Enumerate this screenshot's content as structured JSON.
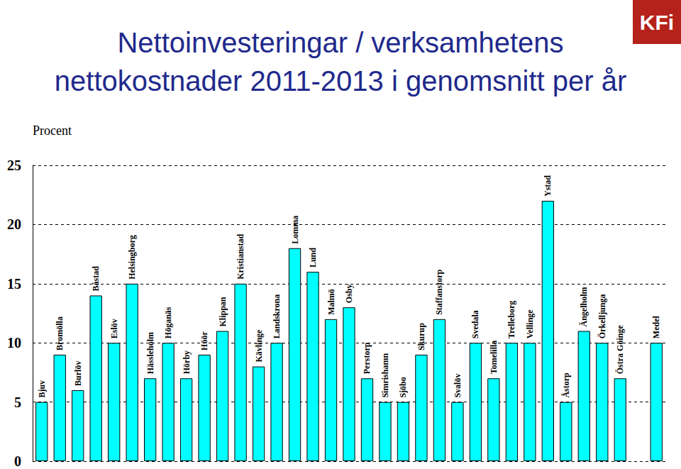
{
  "chart_data": {
    "type": "bar",
    "title": "Nettoinvesteringar / verksamhetens\nnettokostnader 2011-2013 i genomsnitt per år",
    "y_label": "Procent",
    "annotations": [
      "KFi"
    ],
    "categories": [
      "Bjuv",
      "Bromölla",
      "Burlöv",
      "Båstad",
      "Eslöv",
      "Helsingborg",
      "Hässleholm",
      "Höganäs",
      "Hörby",
      "Höör",
      "Klippan",
      "Kristianstad",
      "Kävlinge",
      "Landskrona",
      "Lomma",
      "Lund",
      "Malmö",
      "Osby",
      "Perstorp",
      "Simrishamn",
      "Sjöbo",
      "Skurup",
      "Staffanstorp",
      "Svalöv",
      "Svedala",
      "Tomelilla",
      "Trelleborg",
      "Vellinge",
      "Ystad",
      "Åstorp",
      "Ängelholm",
      "Örkelljunga",
      "Östra Göinge",
      null,
      "Medel"
    ],
    "values": [
      5,
      9,
      6,
      14,
      10,
      15,
      7,
      10,
      7,
      9,
      11,
      15,
      8,
      10,
      18,
      16,
      12,
      13,
      7,
      5,
      5,
      9,
      12,
      5,
      10,
      7,
      10,
      10,
      22,
      5,
      11,
      10,
      7,
      null,
      10
    ],
    "color": "#00ffff",
    "ylim": [
      0,
      25
    ],
    "yticks": [
      0,
      5,
      10,
      15,
      20,
      25
    ],
    "grid": true,
    "tick_labels": "y"
  }
}
